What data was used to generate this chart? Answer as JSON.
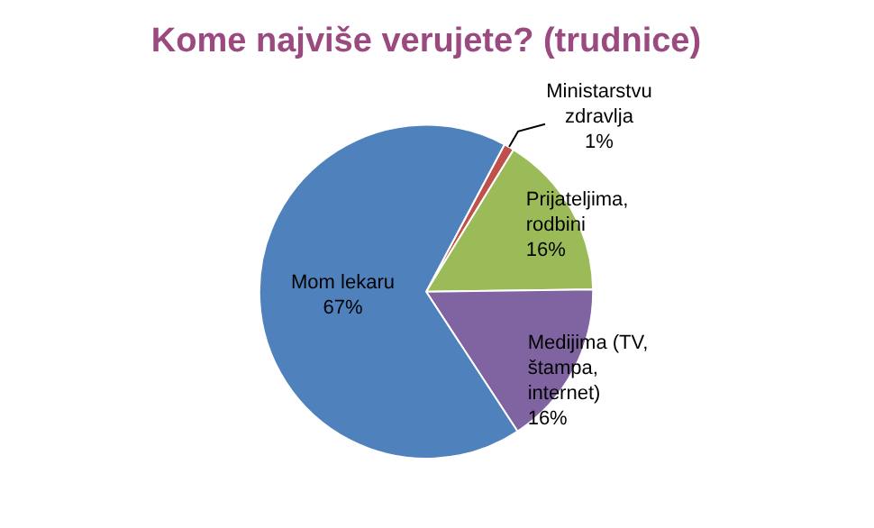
{
  "chart_data": {
    "type": "pie",
    "title": "Kome najviše verujete? (trudnice)",
    "categories": [
      "Ministarstvu zdravlja",
      "Prijateljima, rodbini",
      "Medijima (TV, štampa, internet)",
      "Mom lekaru"
    ],
    "values": [
      1,
      16,
      16,
      67
    ],
    "colors": [
      "#c0504d",
      "#9bbb59",
      "#8064a2",
      "#4f81bd"
    ],
    "value_labels": [
      "1%",
      "16%",
      "16%",
      "67%"
    ],
    "legend": false
  }
}
